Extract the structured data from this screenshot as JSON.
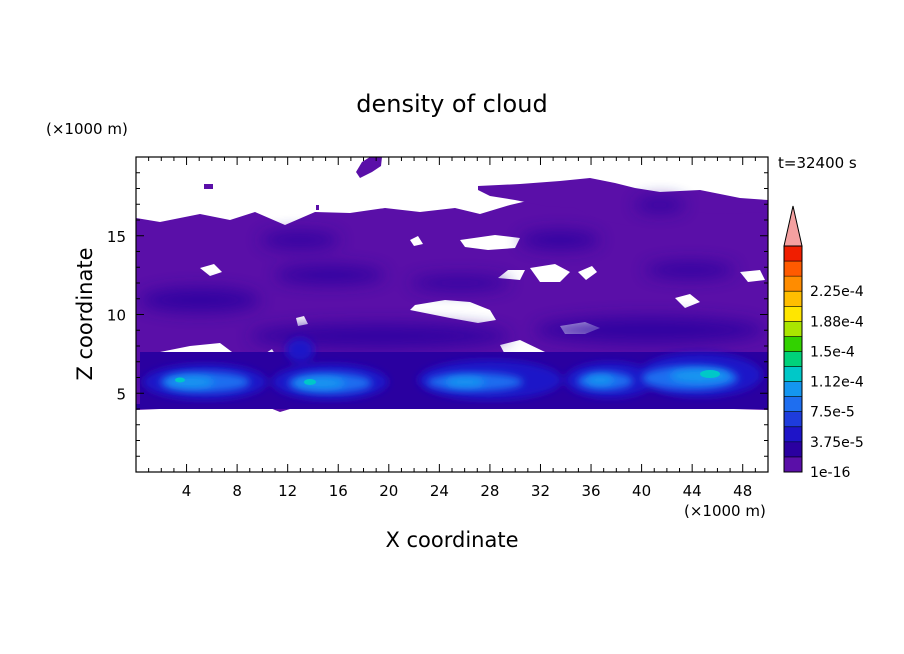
{
  "chart_data": {
    "type": "heatmap",
    "title": "density of cloud",
    "time_label": "t=32400 s",
    "xlabel": "X coordinate",
    "ylabel": "Z coordinate",
    "x_unit": "(×1000 m)",
    "y_unit": "(×1000 m)",
    "xlim": [
      0,
      50
    ],
    "ylim": [
      0,
      20
    ],
    "x_ticks": [
      4,
      8,
      12,
      16,
      20,
      24,
      28,
      32,
      36,
      40,
      44,
      48
    ],
    "y_ticks": [
      5,
      10,
      15
    ],
    "colorbar": {
      "levels": [
        1e-16,
        1.875e-05,
        3.75e-05,
        5.625e-05,
        7.5e-05,
        9.375e-05,
        0.0001125,
        0.00013125,
        0.00015,
        0.00016875,
        0.0001875,
        0.00020625,
        0.000225,
        0.00024375
      ],
      "tick_labels": [
        "1e-16",
        "3.75e-5",
        "7.5e-5",
        "1.12e-4",
        "1.5e-4",
        "1.88e-4",
        "2.25e-4"
      ],
      "colors": [
        "#5a0fa8",
        "#2a00a0",
        "#1e14c8",
        "#1e3cdc",
        "#1e6ef0",
        "#1496f0",
        "#00c8c8",
        "#00d27a",
        "#32d200",
        "#aae600",
        "#ffe600",
        "#ffbe00",
        "#ff8c00",
        "#ff5a00",
        "#f01e00"
      ],
      "extend_max_color": "#f4a0a0"
    }
  }
}
